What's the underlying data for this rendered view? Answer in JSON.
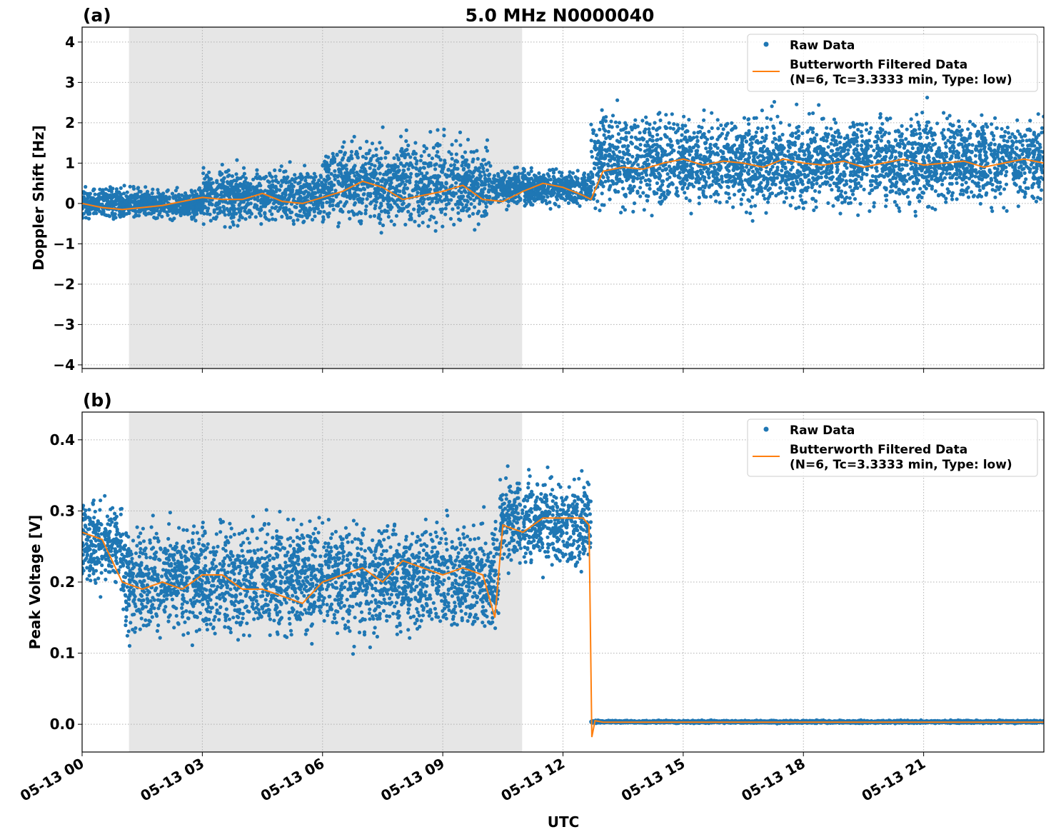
{
  "chart_data": {
    "title": "5.0 MHz N0000040",
    "xlabel": "UTC",
    "x_unit": "hours since 05-13 00 UTC",
    "xlim": [
      0,
      24
    ],
    "x_ticks": [
      0,
      3,
      6,
      9,
      12,
      15,
      18,
      21
    ],
    "x_tick_labels": [
      "05-13 00",
      "05-13 03",
      "05-13 06",
      "05-13 09",
      "05-13 12",
      "05-13 15",
      "05-13 18",
      "05-13 21"
    ],
    "shaded_interval": [
      1.17,
      10.98
    ],
    "colors": {
      "raw": "#1f77b4",
      "filtered": "#ff7f0e",
      "shade": "#e6e6e6",
      "grid": "#b0b0b0"
    },
    "grid": true,
    "legend_placement": "upper right",
    "legend": {
      "raw": "Raw Data",
      "filtered_line1": "Butterworth Filtered Data",
      "filtered_line2": "(N=6, Tc=3.3333 min, Type: low)"
    },
    "panels": [
      {
        "label": "(a)",
        "type": "scatter+line",
        "ylabel": "Doppler Shift [Hz]",
        "ylim": [
          -4.09,
          4.37
        ],
        "y_ticks": [
          -4,
          -3,
          -2,
          -1,
          0,
          1,
          2,
          3,
          4
        ],
        "y_tick_labels": [
          "−4",
          "−3",
          "−2",
          "−1",
          "0",
          "1",
          "2",
          "3",
          "4"
        ],
        "raw_envelope": [
          {
            "t0": 0,
            "t1": 3,
            "low": -0.5,
            "high": 0.5
          },
          {
            "t0": 3,
            "t1": 6,
            "low": -0.7,
            "high": 1.1
          },
          {
            "t0": 6,
            "t1": 10.2,
            "low": -0.9,
            "high": 1.9
          },
          {
            "t0": 10.2,
            "t1": 12.7,
            "low": -0.2,
            "high": 1.0
          },
          {
            "t0": 12.7,
            "t1": 24,
            "low": -0.5,
            "high": 2.6
          }
        ],
        "filtered": {
          "t": [
            0,
            0.5,
            1,
            1.5,
            2,
            2.5,
            3,
            3.5,
            4,
            4.5,
            5,
            5.5,
            6,
            6.5,
            7,
            7.5,
            8,
            8.5,
            9,
            9.5,
            10,
            10.5,
            11,
            11.5,
            12,
            12.5,
            12.7,
            13,
            13.5,
            14,
            14.5,
            15,
            15.5,
            16,
            16.5,
            17,
            17.5,
            18,
            18.5,
            19,
            19.5,
            20,
            20.5,
            21,
            21.5,
            22,
            22.5,
            23,
            23.5,
            24
          ],
          "y": [
            0,
            -0.1,
            -0.15,
            -0.1,
            -0.05,
            0.05,
            0.15,
            0.1,
            0.1,
            0.25,
            0.05,
            0.0,
            0.15,
            0.3,
            0.55,
            0.4,
            0.1,
            0.2,
            0.3,
            0.45,
            0.1,
            0.05,
            0.3,
            0.5,
            0.4,
            0.2,
            0.1,
            0.8,
            0.9,
            0.85,
            1.0,
            1.1,
            0.95,
            1.05,
            1.0,
            0.9,
            1.1,
            1.0,
            0.95,
            1.05,
            0.9,
            1.0,
            1.1,
            0.95,
            1.0,
            1.05,
            0.9,
            1.0,
            1.1,
            1.0
          ]
        }
      },
      {
        "label": "(b)",
        "type": "scatter+line",
        "ylabel": "Peak Voltage [V]",
        "ylim": [
          -0.039,
          0.439
        ],
        "y_ticks": [
          0.0,
          0.1,
          0.2,
          0.3,
          0.4
        ],
        "y_tick_labels": [
          "0.0",
          "0.1",
          "0.2",
          "0.3",
          "0.4"
        ],
        "raw_envelope": [
          {
            "t0": 0,
            "t1": 1,
            "low": 0.17,
            "high": 0.34
          },
          {
            "t0": 1,
            "t1": 10.4,
            "low": 0.1,
            "high": 0.31
          },
          {
            "t0": 10.4,
            "t1": 12.7,
            "low": 0.2,
            "high": 0.37
          },
          {
            "t0": 12.7,
            "t1": 24,
            "low": 0.001,
            "high": 0.006
          }
        ],
        "filtered": {
          "t": [
            0,
            0.5,
            1,
            1.5,
            2,
            2.5,
            3,
            3.5,
            4,
            4.5,
            5,
            5.5,
            6,
            6.5,
            7,
            7.5,
            8,
            8.5,
            9,
            9.5,
            10,
            10.3,
            10.5,
            11,
            11.5,
            12,
            12.5,
            12.65,
            12.72,
            12.8,
            13,
            24
          ],
          "y": [
            0.27,
            0.26,
            0.2,
            0.19,
            0.2,
            0.19,
            0.21,
            0.21,
            0.19,
            0.19,
            0.18,
            0.17,
            0.2,
            0.21,
            0.22,
            0.2,
            0.23,
            0.22,
            0.21,
            0.22,
            0.21,
            0.15,
            0.28,
            0.27,
            0.29,
            0.29,
            0.29,
            0.28,
            -0.018,
            0.005,
            0.003,
            0.003
          ]
        }
      }
    ]
  }
}
